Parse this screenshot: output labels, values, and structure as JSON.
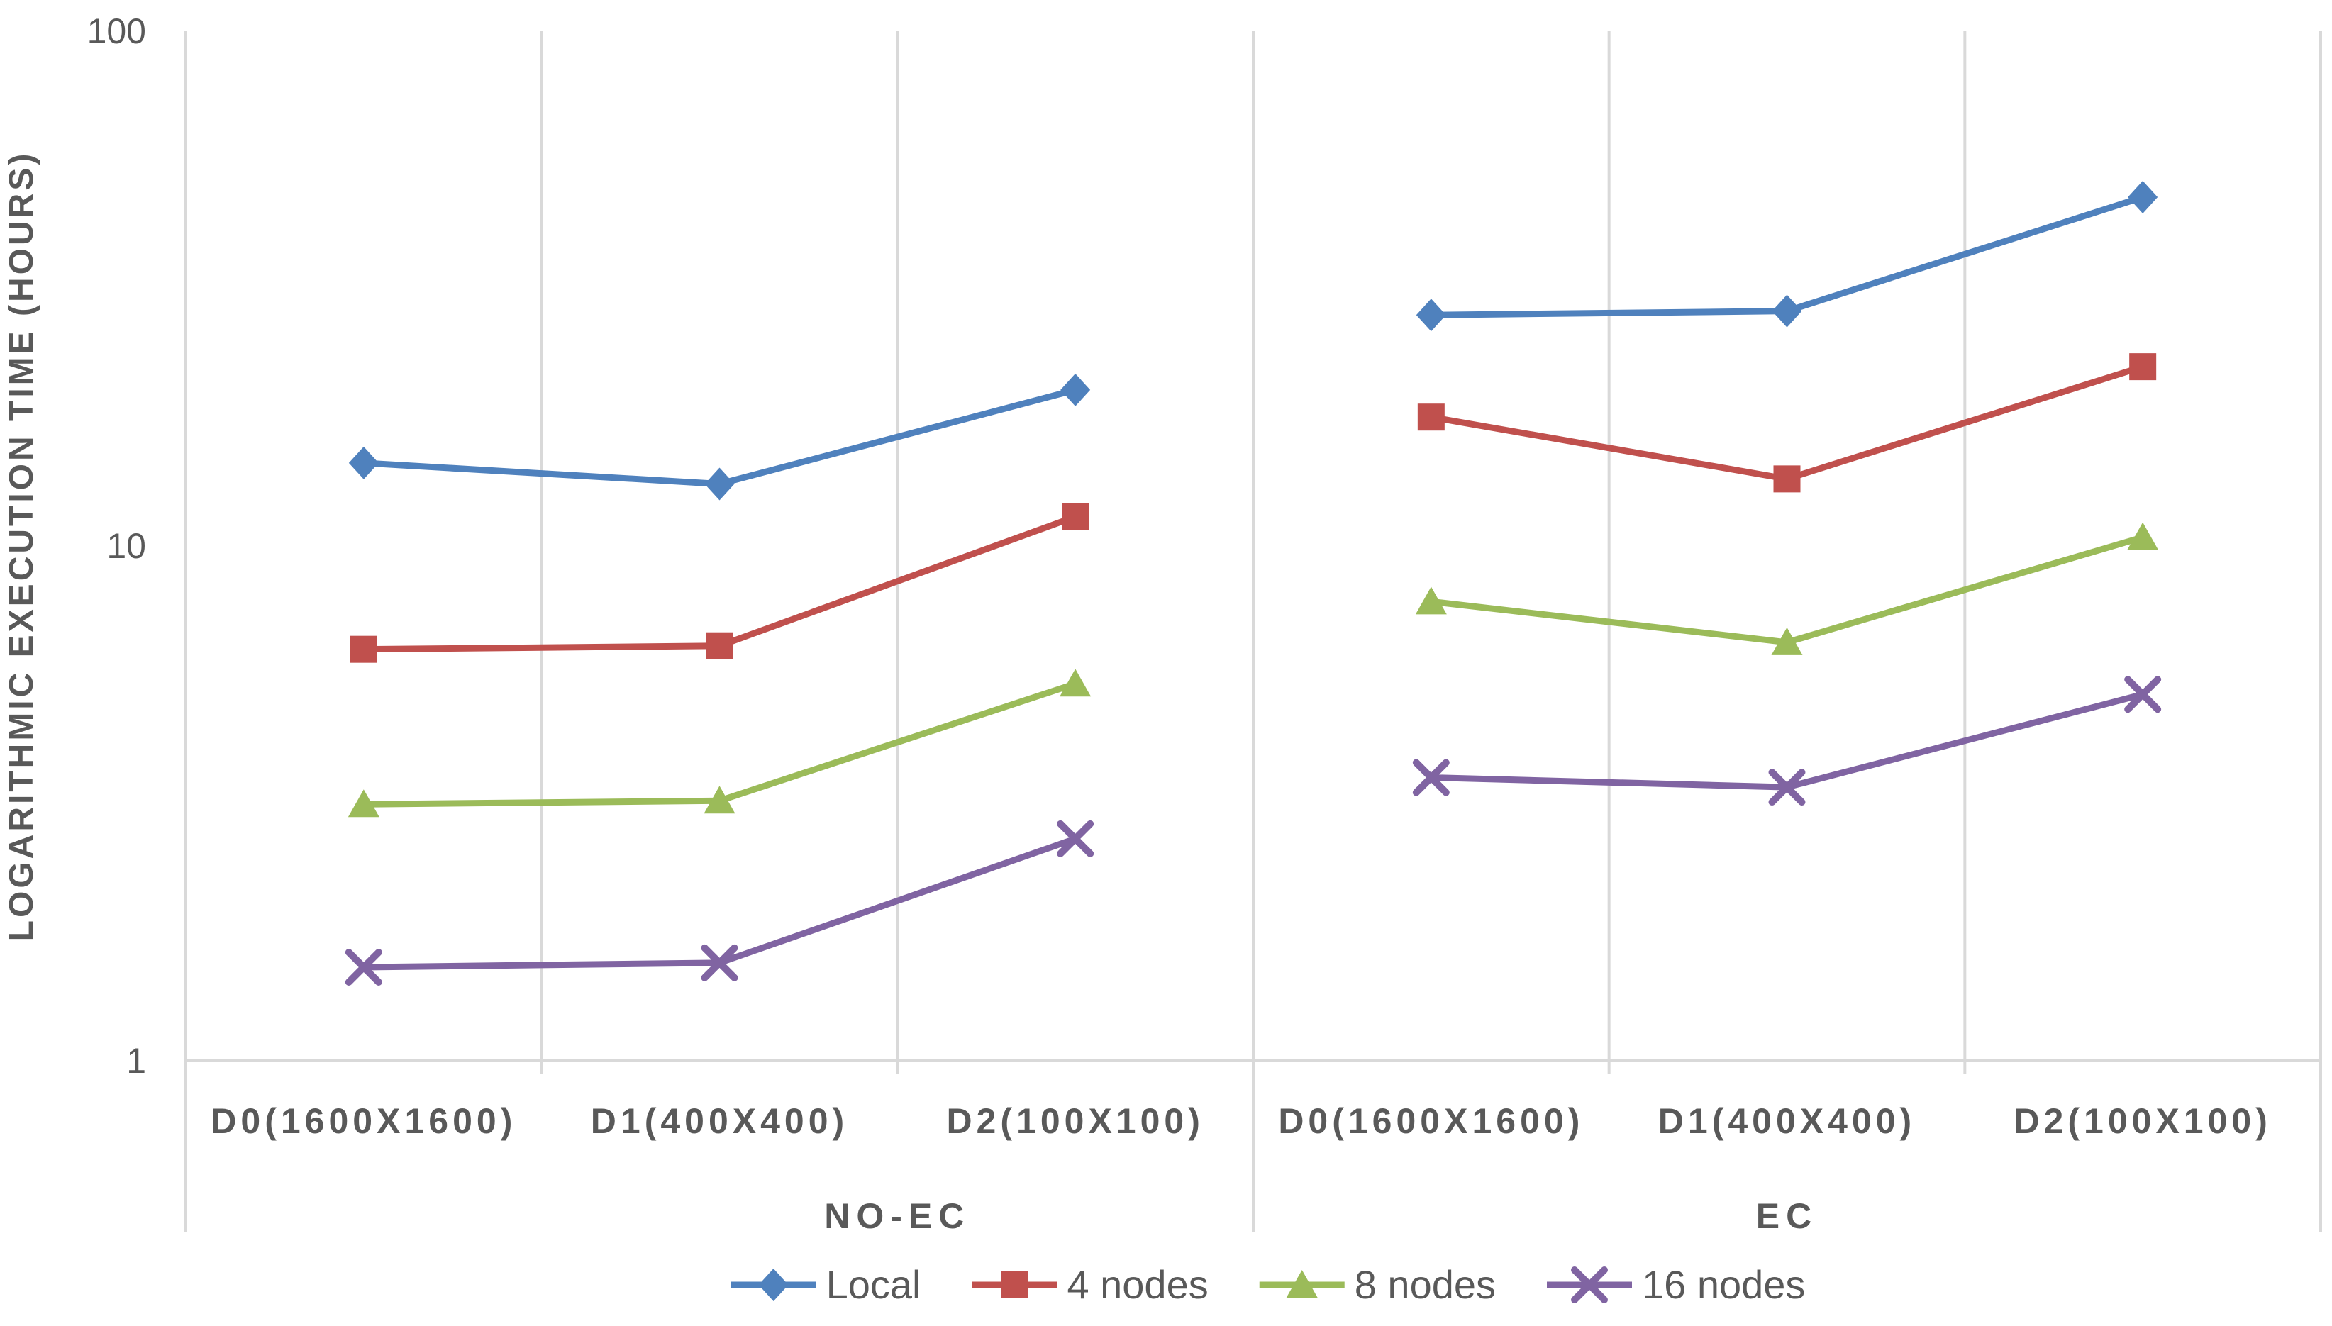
{
  "chart_data": {
    "type": "line",
    "title": "",
    "xlabel": "",
    "ylabel": "LOGARITHMIC EXECUTION TIME (HOURS)",
    "y_scale": "log10",
    "ylim": [
      1,
      100
    ],
    "grid": "vertical-only",
    "legend_position": "bottom",
    "yticks": [
      {
        "value": 100,
        "label": "100"
      },
      {
        "value": 10,
        "label": "10"
      },
      {
        "value": 1,
        "label": "1"
      }
    ],
    "groups": [
      {
        "label": "NO-EC",
        "categories": [
          "D0(1600X1600)",
          "D1(400X400)",
          "D2(100X100)"
        ]
      },
      {
        "label": "EC",
        "categories": [
          "D0(1600X1600)",
          "D1(400X400)",
          "D2(100X100)"
        ]
      }
    ],
    "series": [
      {
        "name": "Local",
        "marker": "diamond",
        "color": "#4F81BD",
        "values": [
          [
            14.5,
            13.2,
            20.1
          ],
          [
            28.1,
            28.6,
            47.6
          ]
        ]
      },
      {
        "name": "4 nodes",
        "marker": "square",
        "color": "#C0504D",
        "values": [
          [
            6.3,
            6.4,
            11.4
          ],
          [
            17.8,
            13.5,
            22.3
          ]
        ]
      },
      {
        "name": "8 nodes",
        "marker": "triangle",
        "color": "#9BBB59",
        "values": [
          [
            3.15,
            3.2,
            5.4
          ],
          [
            7.8,
            6.5,
            10.4
          ]
        ]
      },
      {
        "name": "16 nodes",
        "marker": "x",
        "color": "#8064A2",
        "values": [
          [
            1.52,
            1.55,
            2.7
          ],
          [
            3.55,
            3.4,
            5.15
          ]
        ]
      }
    ],
    "colors": {
      "text": "#595959",
      "grid": "#D9D9D9",
      "background": "#FFFFFF"
    }
  }
}
